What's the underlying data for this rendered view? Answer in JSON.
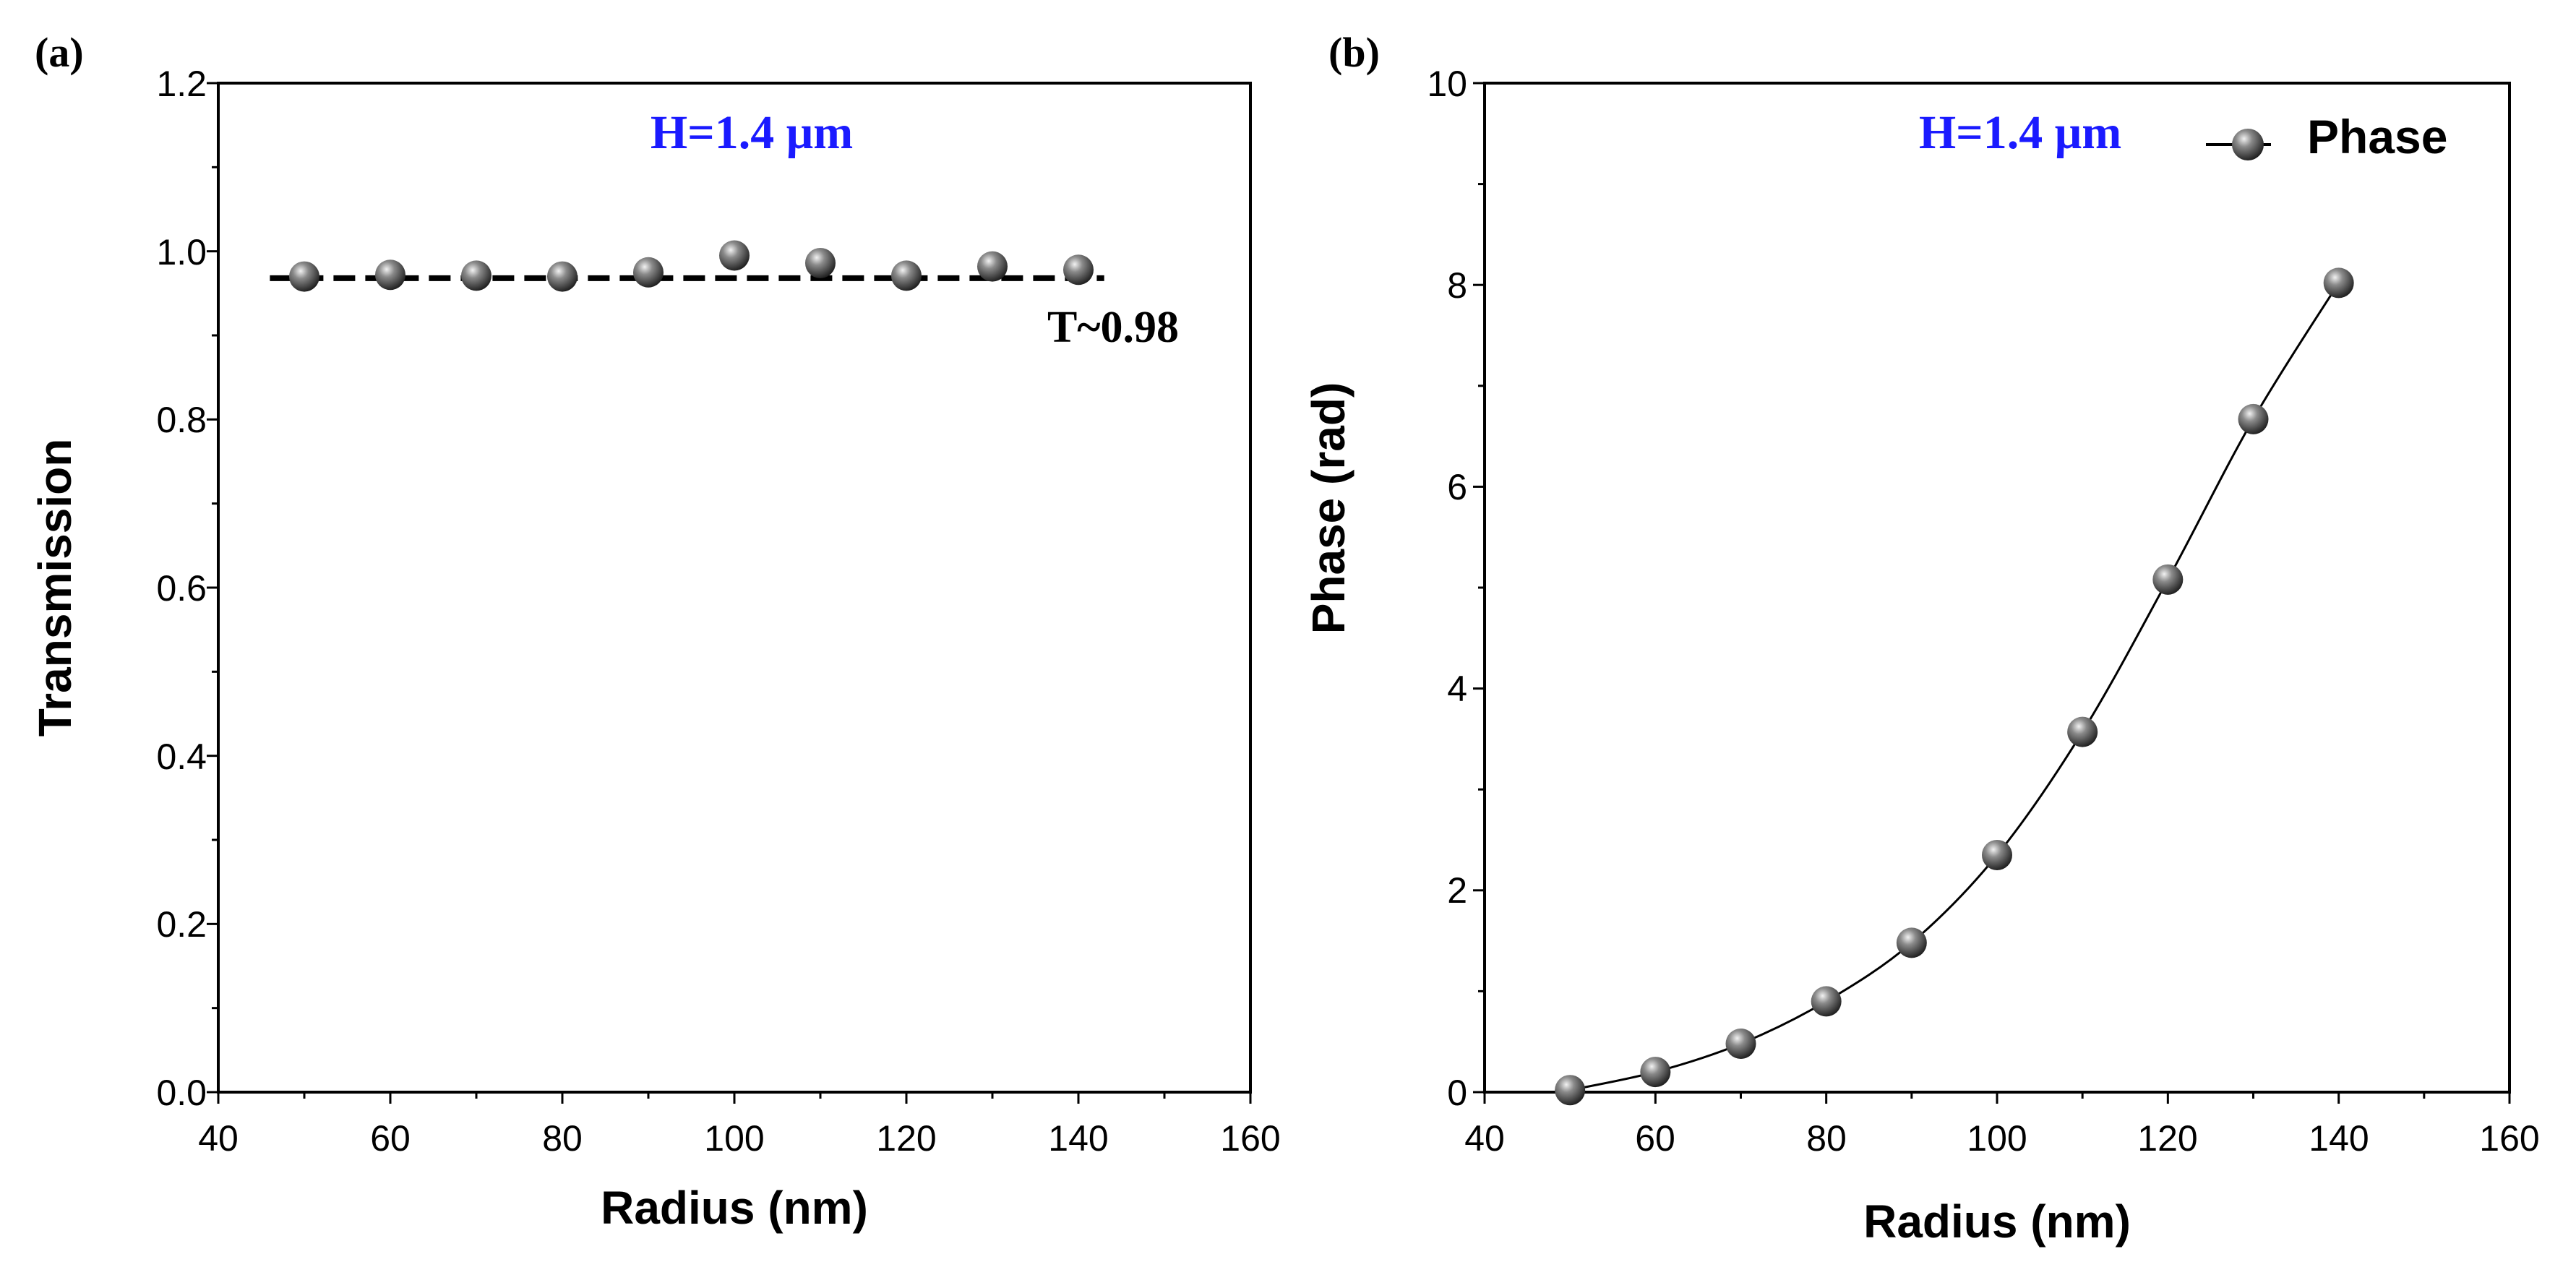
{
  "colors": {
    "axis": "#000000",
    "annotation": "#1a1aff",
    "marker_dark": "#1a1a1a",
    "marker_light": "#f2f2f2",
    "background": "#ffffff"
  },
  "chart_data": [
    {
      "panel_label": "(a)",
      "type": "scatter",
      "title": "",
      "xlabel": "Radius (nm)",
      "ylabel": "Transmission",
      "xlim": [
        40,
        160
      ],
      "ylim": [
        0.0,
        1.2
      ],
      "xticks": [
        "40",
        "60",
        "80",
        "100",
        "120",
        "140",
        "160"
      ],
      "yticks": [
        "0.0",
        "0.2",
        "0.4",
        "0.6",
        "0.8",
        "1.0",
        "1.2"
      ],
      "grid": false,
      "series": [
        {
          "name": "Transmission",
          "x": [
            50,
            60,
            70,
            80,
            90,
            100,
            110,
            120,
            130,
            140
          ],
          "y": [
            0.97,
            0.972,
            0.971,
            0.97,
            0.975,
            0.995,
            0.986,
            0.971,
            0.982,
            0.978
          ],
          "line": "none",
          "marker": "sphere"
        }
      ],
      "reference_line": {
        "style": "dashed",
        "y": 0.968,
        "x_range": [
          46,
          143
        ]
      },
      "annotations": [
        {
          "text": "H=1.4 μm",
          "color": "#1a1aff"
        },
        {
          "text": "T~0.98",
          "color": "#000000"
        }
      ]
    },
    {
      "panel_label": "(b)",
      "type": "line",
      "title": "",
      "xlabel": "Radius (nm)",
      "ylabel": "Phase (rad)",
      "xlim": [
        40,
        160
      ],
      "ylim": [
        0,
        10
      ],
      "xticks": [
        "40",
        "60",
        "80",
        "100",
        "120",
        "140",
        "160"
      ],
      "yticks": [
        "0",
        "2",
        "4",
        "6",
        "8",
        "10"
      ],
      "grid": false,
      "series": [
        {
          "name": "Phase",
          "x": [
            50,
            60,
            70,
            80,
            90,
            100,
            110,
            120,
            130,
            140
          ],
          "y": [
            0.02,
            0.2,
            0.48,
            0.9,
            1.48,
            2.35,
            3.57,
            5.08,
            6.67,
            8.02
          ],
          "line": "solid",
          "marker": "sphere"
        }
      ],
      "legend": {
        "position": "top-right",
        "entries": [
          "Phase"
        ]
      },
      "annotations": [
        {
          "text": "H=1.4 μm",
          "color": "#1a1aff"
        }
      ]
    }
  ]
}
